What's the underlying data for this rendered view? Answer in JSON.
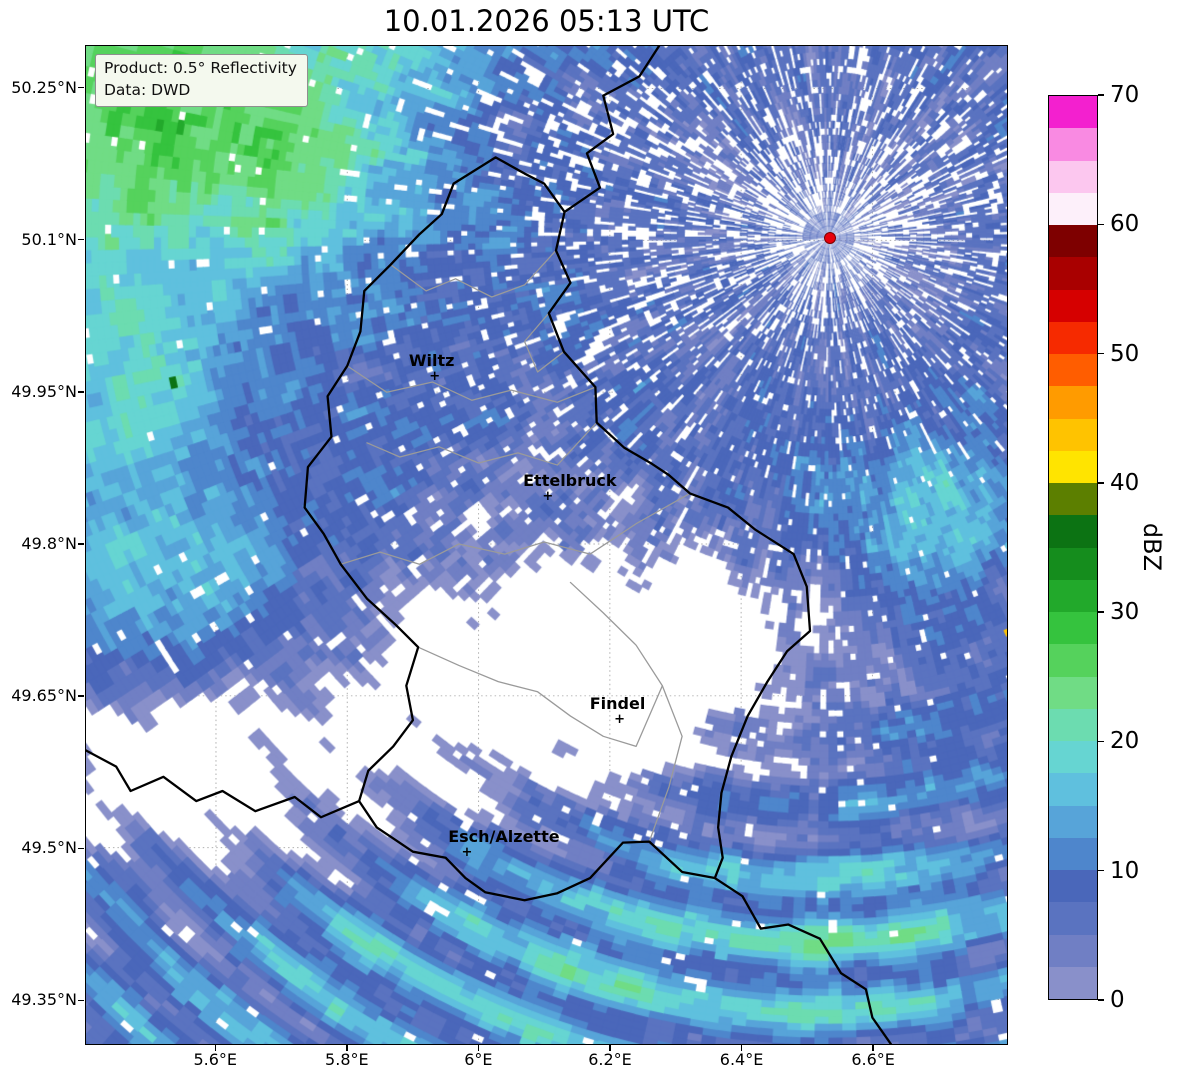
{
  "title": "10.01.2026 05:13 UTC",
  "info_box": {
    "line1": "Product: 0.5° Reflectivity",
    "line2": "Data: DWD"
  },
  "map": {
    "extent": {
      "lon_min": 5.402,
      "lon_max": 6.805,
      "lat_min": 49.306,
      "lat_max": 50.292
    },
    "x_ticks": [
      {
        "value": 5.6,
        "label": "5.6°E"
      },
      {
        "value": 5.8,
        "label": "5.8°E"
      },
      {
        "value": 6.0,
        "label": "6°E"
      },
      {
        "value": 6.2,
        "label": "6.2°E"
      },
      {
        "value": 6.4,
        "label": "6.4°E"
      },
      {
        "value": 6.6,
        "label": "6.6°E"
      }
    ],
    "y_ticks": [
      {
        "value": 50.25,
        "label": "50.25°N"
      },
      {
        "value": 50.1,
        "label": "50.1°N"
      },
      {
        "value": 49.95,
        "label": "49.95°N"
      },
      {
        "value": 49.8,
        "label": "49.8°N"
      },
      {
        "value": 49.65,
        "label": "49.65°N"
      },
      {
        "value": 49.5,
        "label": "49.5°N"
      },
      {
        "value": 49.35,
        "label": "49.35°N"
      }
    ],
    "cities": [
      {
        "name": "Wiltz",
        "lon": 5.932,
        "lat": 49.966,
        "label_dx": -3
      },
      {
        "name": "Ettelbruck",
        "lon": 6.104,
        "lat": 49.847,
        "label_dx": 22
      },
      {
        "name": "Findel",
        "lon": 6.213,
        "lat": 49.627,
        "label_dx": -2
      },
      {
        "name": "Esch/Alzette",
        "lon": 5.981,
        "lat": 49.496,
        "label_dx": 37
      }
    ],
    "radar_site": {
      "lon": 6.533,
      "lat": 50.103,
      "color": "#e8000b"
    }
  },
  "colorbar": {
    "label": "dBZ",
    "min": 0,
    "max": 70,
    "ticks": [
      0,
      10,
      20,
      30,
      40,
      50,
      60,
      70
    ],
    "segment_step": 2.5,
    "colors": [
      "#8990ca",
      "#707fc4",
      "#5a73c0",
      "#4a67ba",
      "#4e86cc",
      "#57a4d9",
      "#5fc0de",
      "#66d5d2",
      "#6cdcb0",
      "#70dc85",
      "#55d25c",
      "#35c33e",
      "#22a92b",
      "#158d1d",
      "#0c7313",
      "#5c7f00",
      "#ffe400",
      "#ffc300",
      "#ff9b00",
      "#ff5d00",
      "#f62a00",
      "#d60000",
      "#a90000",
      "#7e0000",
      "#fdf0fa",
      "#fcc7ef",
      "#f98ae2",
      "#f320cf"
    ]
  },
  "borders": {
    "national_color": "#000000",
    "regional_color": "#9a9a9a",
    "grid_color": "#b0b0b0",
    "national": [
      [
        [
          6.275,
          50.292
        ],
        [
          6.245,
          50.262
        ],
        [
          6.19,
          50.243
        ],
        [
          6.205,
          50.205
        ],
        [
          6.165,
          50.186
        ],
        [
          6.185,
          50.152
        ],
        [
          6.131,
          50.128
        ]
      ],
      [
        [
          6.131,
          50.128
        ],
        [
          6.118,
          50.09
        ],
        [
          6.14,
          50.058
        ],
        [
          6.107,
          50.028
        ],
        [
          6.13,
          49.99
        ],
        [
          6.178,
          49.955
        ],
        [
          6.18,
          49.92
        ],
        [
          6.222,
          49.895
        ],
        [
          6.262,
          49.88
        ],
        [
          6.29,
          49.868
        ],
        [
          6.322,
          49.85
        ],
        [
          6.38,
          49.836
        ],
        [
          6.422,
          49.814
        ],
        [
          6.48,
          49.79
        ],
        [
          6.5,
          49.758
        ],
        [
          6.505,
          49.714
        ],
        [
          6.47,
          49.694
        ],
        [
          6.44,
          49.664
        ],
        [
          6.41,
          49.63
        ],
        [
          6.385,
          49.59
        ],
        [
          6.37,
          49.554
        ],
        [
          6.365,
          49.52
        ],
        [
          6.372,
          49.49
        ],
        [
          6.36,
          49.47
        ],
        [
          6.31,
          49.476
        ],
        [
          6.26,
          49.506
        ],
        [
          6.22,
          49.505
        ],
        [
          6.17,
          49.47
        ],
        [
          6.12,
          49.455
        ],
        [
          6.07,
          49.448
        ],
        [
          6.01,
          49.456
        ],
        [
          5.98,
          49.47
        ],
        [
          5.95,
          49.49
        ],
        [
          5.9,
          49.496
        ],
        [
          5.868,
          49.51
        ],
        [
          5.845,
          49.52
        ],
        [
          5.818,
          49.546
        ],
        [
          5.832,
          49.576
        ],
        [
          5.87,
          49.6
        ],
        [
          5.9,
          49.626
        ],
        [
          5.89,
          49.66
        ],
        [
          5.908,
          49.698
        ],
        [
          5.874,
          49.72
        ],
        [
          5.83,
          49.746
        ],
        [
          5.79,
          49.78
        ],
        [
          5.764,
          49.81
        ],
        [
          5.735,
          49.836
        ],
        [
          5.74,
          49.876
        ],
        [
          5.776,
          49.906
        ],
        [
          5.77,
          49.946
        ],
        [
          5.8,
          49.976
        ],
        [
          5.82,
          50.01
        ],
        [
          5.826,
          50.05
        ],
        [
          5.866,
          50.076
        ],
        [
          5.91,
          50.106
        ],
        [
          5.944,
          50.126
        ],
        [
          5.962,
          50.156
        ],
        [
          6.026,
          50.182
        ],
        [
          6.07,
          50.166
        ],
        [
          6.1,
          50.156
        ],
        [
          6.131,
          50.128
        ]
      ],
      [
        [
          6.36,
          49.47
        ],
        [
          6.402,
          49.452
        ],
        [
          6.43,
          49.42
        ],
        [
          6.472,
          49.424
        ],
        [
          6.52,
          49.41
        ],
        [
          6.552,
          49.376
        ],
        [
          6.59,
          49.36
        ],
        [
          6.6,
          49.332
        ],
        [
          6.628,
          49.306
        ]
      ],
      [
        [
          5.402,
          49.596
        ],
        [
          5.448,
          49.58
        ],
        [
          5.47,
          49.556
        ],
        [
          5.52,
          49.57
        ],
        [
          5.57,
          49.546
        ],
        [
          5.61,
          49.556
        ],
        [
          5.66,
          49.536
        ],
        [
          5.72,
          49.55
        ],
        [
          5.76,
          49.53
        ],
        [
          5.818,
          49.546
        ]
      ]
    ],
    "regional": [
      [
        [
          5.866,
          50.076
        ],
        [
          5.92,
          50.05
        ],
        [
          5.965,
          50.062
        ],
        [
          6.02,
          50.044
        ],
        [
          6.07,
          50.056
        ],
        [
          6.118,
          50.09
        ]
      ],
      [
        [
          5.8,
          49.976
        ],
        [
          5.86,
          49.95
        ],
        [
          5.93,
          49.96
        ],
        [
          5.99,
          49.942
        ],
        [
          6.05,
          49.952
        ],
        [
          6.12,
          49.94
        ],
        [
          6.178,
          49.955
        ]
      ],
      [
        [
          5.83,
          49.9
        ],
        [
          5.88,
          49.886
        ],
        [
          5.94,
          49.896
        ],
        [
          6.0,
          49.88
        ],
        [
          6.06,
          49.89
        ],
        [
          6.12,
          49.878
        ],
        [
          6.18,
          49.92
        ]
      ],
      [
        [
          5.79,
          49.78
        ],
        [
          5.85,
          49.792
        ],
        [
          5.91,
          49.78
        ],
        [
          5.97,
          49.8
        ],
        [
          6.04,
          49.79
        ],
        [
          6.1,
          49.802
        ],
        [
          6.17,
          49.79
        ],
        [
          6.24,
          49.82
        ],
        [
          6.322,
          49.85
        ]
      ],
      [
        [
          6.14,
          49.762
        ],
        [
          6.19,
          49.732
        ],
        [
          6.24,
          49.7
        ],
        [
          6.28,
          49.66
        ],
        [
          6.31,
          49.61
        ],
        [
          6.29,
          49.56
        ],
        [
          6.26,
          49.506
        ]
      ],
      [
        [
          5.908,
          49.698
        ],
        [
          5.97,
          49.68
        ],
        [
          6.03,
          49.664
        ],
        [
          6.09,
          49.654
        ],
        [
          6.14,
          49.63
        ],
        [
          6.19,
          49.61
        ],
        [
          6.24,
          49.6
        ],
        [
          6.28,
          49.66
        ]
      ],
      [
        [
          6.107,
          50.028
        ],
        [
          6.07,
          50.0
        ],
        [
          6.09,
          49.97
        ],
        [
          6.13,
          49.99
        ]
      ]
    ]
  }
}
